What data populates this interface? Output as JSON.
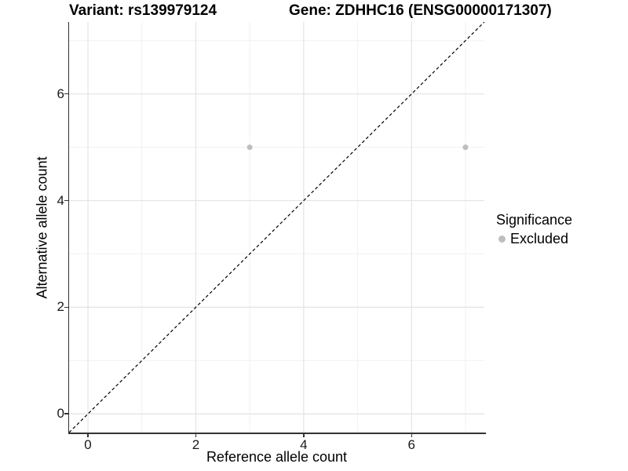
{
  "chart_data": {
    "type": "scatter",
    "titles": {
      "variant": "Variant: rs139979124",
      "gene": "Gene: ZDHHC16 (ENSG00000171307)"
    },
    "xlabel": "Reference allele count",
    "ylabel": "Alternative allele count",
    "xlim": [
      -0.35,
      7.35
    ],
    "ylim": [
      -0.35,
      7.35
    ],
    "x_ticks": [
      0,
      2,
      4,
      6
    ],
    "y_ticks": [
      0,
      2,
      4,
      6
    ],
    "x_grid_minor": [
      1,
      3,
      5,
      7
    ],
    "y_grid_minor": [
      1,
      3,
      5,
      7
    ],
    "grid": "on",
    "series": [
      {
        "name": "Excluded",
        "color": "#bebebe",
        "points": [
          {
            "x": 3,
            "y": 5
          },
          {
            "x": 7,
            "y": 5
          }
        ]
      }
    ],
    "identity_line": {
      "style": "dashed",
      "slope": 1,
      "intercept": 0,
      "color": "#000000"
    },
    "legend": {
      "title": "Significance",
      "position": "right",
      "entries": [
        {
          "label": "Excluded",
          "color": "#bebebe"
        }
      ]
    }
  },
  "colors": {
    "background": "#ffffff",
    "grid_major": "#e3e3e3",
    "grid_minor": "#f1f1f1",
    "axis": "#333333",
    "point": "#bebebe",
    "text": "#000000"
  }
}
